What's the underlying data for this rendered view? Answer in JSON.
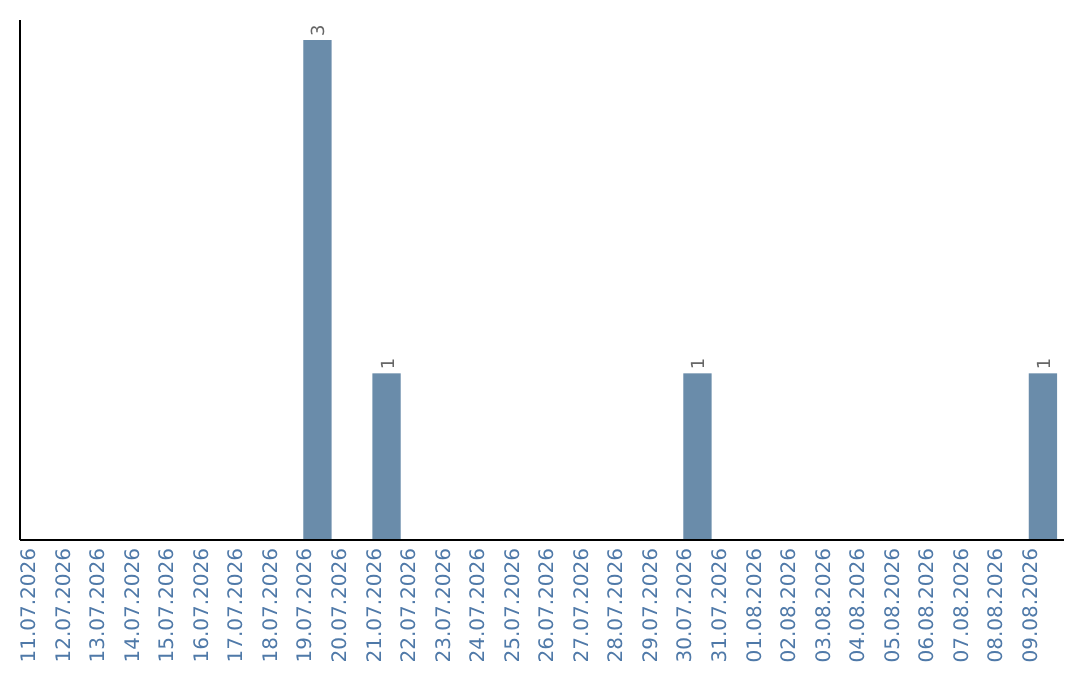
{
  "chart_data": {
    "type": "bar",
    "categories": [
      "11.07.2026",
      "12.07.2026",
      "13.07.2026",
      "14.07.2026",
      "15.07.2026",
      "16.07.2026",
      "17.07.2026",
      "18.07.2026",
      "19.07.2026",
      "20.07.2026",
      "21.07.2026",
      "22.07.2026",
      "23.07.2026",
      "24.07.2026",
      "25.07.2026",
      "26.07.2026",
      "27.07.2026",
      "28.07.2026",
      "29.07.2026",
      "30.07.2026",
      "31.07.2026",
      "01.08.2026",
      "02.08.2026",
      "03.08.2026",
      "04.08.2026",
      "05.08.2026",
      "06.08.2026",
      "07.08.2026",
      "08.08.2026",
      "09.08.2026"
    ],
    "values": [
      0,
      0,
      0,
      0,
      0,
      0,
      0,
      0,
      3,
      0,
      1,
      0,
      0,
      0,
      0,
      0,
      0,
      0,
      0,
      1,
      0,
      0,
      0,
      0,
      0,
      0,
      0,
      0,
      0,
      1
    ],
    "value_labels": [
      null,
      null,
      null,
      null,
      null,
      null,
      null,
      null,
      "3",
      null,
      "1",
      null,
      null,
      null,
      null,
      null,
      null,
      null,
      null,
      "1",
      null,
      null,
      null,
      null,
      null,
      null,
      null,
      null,
      null,
      "1"
    ],
    "color": "#6a8caa",
    "ylim": [
      0,
      3.12
    ],
    "tick_labels": "x"
  }
}
